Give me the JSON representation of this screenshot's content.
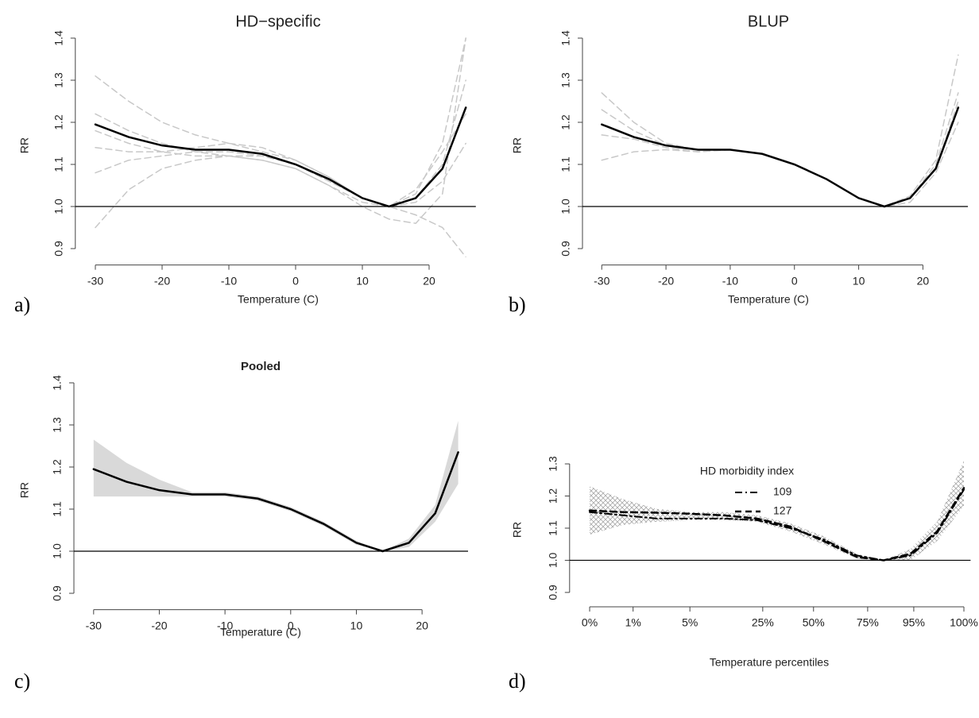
{
  "chart_data": [
    {
      "type": "line",
      "title": "HD−specific",
      "title_weight": "normal",
      "panel_label": "a)",
      "xlabel": "Temperature (C)",
      "ylabel": "RR",
      "x": [
        -30,
        -25,
        -20,
        -15,
        -10,
        -5,
        0,
        5,
        10,
        14,
        18,
        22,
        25.5
      ],
      "xlim": [
        -33,
        27
      ],
      "xticks": [
        -30,
        -20,
        -10,
        0,
        10,
        20
      ],
      "ylim": [
        0.88,
        1.41
      ],
      "yticks": [
        0.9,
        {
          "value": 1,
          "label": "1.0"
        },
        1.1,
        1.2,
        1.3,
        1.4
      ],
      "hline": 1,
      "series": [
        {
          "color": "#c8c8c8",
          "dash": "dashed",
          "width": 1.5,
          "values": [
            1.31,
            1.25,
            1.2,
            1.17,
            1.15,
            1.13,
            1.11,
            1.07,
            1.02,
            1.0,
            1.03,
            1.15,
            1.4
          ]
        },
        {
          "color": "#c8c8c8",
          "dash": "dashed",
          "width": 1.5,
          "values": [
            0.95,
            1.04,
            1.09,
            1.11,
            1.12,
            1.12,
            1.1,
            1.06,
            1.02,
            1.0,
            0.98,
            0.95,
            0.88
          ]
        },
        {
          "color": "#c8c8c8",
          "dash": "dashed",
          "width": 1.5,
          "values": [
            1.14,
            1.13,
            1.13,
            1.14,
            1.15,
            1.14,
            1.11,
            1.07,
            1.02,
            1.0,
            1.01,
            1.06,
            1.15
          ]
        },
        {
          "color": "#c8c8c8",
          "dash": "dashed",
          "width": 1.5,
          "values": [
            1.22,
            1.18,
            1.15,
            1.13,
            1.12,
            1.11,
            1.09,
            1.05,
            1.0,
            0.97,
            0.96,
            1.03,
            1.4
          ]
        },
        {
          "color": "#c8c8c8",
          "dash": "dashed",
          "width": 1.5,
          "values": [
            1.08,
            1.11,
            1.12,
            1.13,
            1.13,
            1.12,
            1.1,
            1.06,
            1.02,
            1.0,
            1.02,
            1.1,
            1.3
          ]
        },
        {
          "color": "#c8c8c8",
          "dash": "dashed",
          "width": 1.5,
          "values": [
            1.18,
            1.15,
            1.13,
            1.12,
            1.12,
            1.11,
            1.09,
            1.05,
            1.01,
            1.0,
            1.04,
            1.13,
            1.22
          ]
        },
        {
          "color": "#000000",
          "dash": "solid",
          "width": 2.5,
          "values": [
            1.195,
            1.165,
            1.145,
            1.135,
            1.135,
            1.125,
            1.1,
            1.065,
            1.02,
            1.0,
            1.02,
            1.09,
            1.235
          ]
        }
      ]
    },
    {
      "type": "line",
      "title": "BLUP",
      "title_weight": "normal",
      "panel_label": "b)",
      "xlabel": "Temperature (C)",
      "ylabel": "RR",
      "x": [
        -30,
        -25,
        -20,
        -15,
        -10,
        -5,
        0,
        5,
        10,
        14,
        18,
        22,
        25.5
      ],
      "xlim": [
        -33,
        27
      ],
      "xticks": [
        -30,
        -20,
        -10,
        0,
        10,
        20
      ],
      "ylim": [
        0.88,
        1.41
      ],
      "yticks": [
        0.9,
        {
          "value": 1,
          "label": "1.0"
        },
        1.1,
        1.2,
        1.3,
        1.4
      ],
      "hline": 1,
      "series": [
        {
          "color": "#c8c8c8",
          "dash": "dashed",
          "width": 1.5,
          "values": [
            1.27,
            1.2,
            1.15,
            1.135,
            1.135,
            1.125,
            1.1,
            1.065,
            1.02,
            1.0,
            1.02,
            1.1,
            1.27
          ]
        },
        {
          "color": "#c8c8c8",
          "dash": "dashed",
          "width": 1.5,
          "values": [
            1.11,
            1.13,
            1.135,
            1.13,
            1.135,
            1.125,
            1.1,
            1.065,
            1.02,
            1.0,
            1.01,
            1.08,
            1.2
          ]
        },
        {
          "color": "#c8c8c8",
          "dash": "dashed",
          "width": 1.5,
          "values": [
            1.17,
            1.16,
            1.14,
            1.13,
            1.135,
            1.125,
            1.1,
            1.065,
            1.02,
            1.0,
            1.025,
            1.11,
            1.36
          ]
        },
        {
          "color": "#c8c8c8",
          "dash": "dashed",
          "width": 1.5,
          "values": [
            1.23,
            1.18,
            1.145,
            1.135,
            1.135,
            1.125,
            1.1,
            1.065,
            1.02,
            1.0,
            1.02,
            1.09,
            1.25
          ]
        },
        {
          "color": "#000000",
          "dash": "solid",
          "width": 2.5,
          "values": [
            1.195,
            1.165,
            1.145,
            1.135,
            1.135,
            1.125,
            1.1,
            1.065,
            1.02,
            1.0,
            1.02,
            1.09,
            1.235
          ]
        }
      ]
    },
    {
      "type": "line",
      "title": "Pooled",
      "title_weight": "bold",
      "panel_label": "c)",
      "xlabel": "Temperature (C)",
      "ylabel": "RR",
      "x": [
        -30,
        -25,
        -20,
        -15,
        -10,
        -5,
        0,
        5,
        10,
        14,
        18,
        22,
        25.5
      ],
      "xlim": [
        -33,
        27
      ],
      "xticks": [
        -30,
        -20,
        -10,
        0,
        10,
        20
      ],
      "ylim": [
        0.88,
        1.41
      ],
      "yticks": [
        0.9,
        {
          "value": 1,
          "label": "1.0"
        },
        1.1,
        1.2,
        1.3,
        1.4
      ],
      "hline": 1,
      "band": {
        "color": "#d9d9d9",
        "fill": "solid",
        "lower": [
          1.13,
          1.13,
          1.13,
          1.13,
          1.13,
          1.12,
          1.095,
          1.06,
          1.015,
          1.0,
          1.01,
          1.07,
          1.16
        ],
        "upper": [
          1.265,
          1.21,
          1.17,
          1.14,
          1.14,
          1.13,
          1.105,
          1.07,
          1.025,
          1.0,
          1.03,
          1.11,
          1.31
        ]
      },
      "series": [
        {
          "color": "#000000",
          "dash": "solid",
          "width": 2.5,
          "values": [
            1.195,
            1.165,
            1.145,
            1.135,
            1.135,
            1.125,
            1.1,
            1.065,
            1.02,
            1.0,
            1.02,
            1.09,
            1.235
          ]
        }
      ]
    },
    {
      "type": "line",
      "panel_label": "d)",
      "xlabel": "Temperature percentiles",
      "ylabel": "RR",
      "x": [
        -30,
        -25,
        -20,
        -15,
        -10,
        -5,
        0,
        5,
        10,
        14,
        18,
        22,
        26
      ],
      "xlim": [
        -33,
        27
      ],
      "xticks": [
        {
          "value": -30,
          "label": "0%"
        },
        {
          "value": -23.5,
          "label": "1%"
        },
        {
          "value": -15,
          "label": "5%"
        },
        {
          "value": -4.1,
          "label": "25%"
        },
        {
          "value": 3.5,
          "label": "50%"
        },
        {
          "value": 11.6,
          "label": "75%"
        },
        {
          "value": 18.5,
          "label": "95%"
        },
        {
          "value": 26,
          "label": "100%"
        }
      ],
      "ylim": [
        0.88,
        1.31
      ],
      "yticks": [
        0.9,
        {
          "value": 1,
          "label": "1.0"
        },
        1.1,
        1.2,
        1.3
      ],
      "hline": 1,
      "band": {
        "color": "#a8a8a8",
        "fill": "hatch",
        "lower": [
          1.08,
          1.11,
          1.12,
          1.125,
          1.125,
          1.12,
          1.09,
          1.05,
          1.005,
          1.0,
          1.0,
          1.06,
          1.17
        ],
        "upper": [
          1.23,
          1.19,
          1.16,
          1.15,
          1.15,
          1.14,
          1.115,
          1.075,
          1.02,
          1.0,
          1.035,
          1.12,
          1.31
        ]
      },
      "legend_title": "HD morbidity index",
      "series": [
        {
          "name": "109",
          "color": "#000000",
          "dash": "dashdot",
          "width": 2,
          "values": [
            1.15,
            1.14,
            1.13,
            1.13,
            1.13,
            1.125,
            1.1,
            1.065,
            1.015,
            1.0,
            1.015,
            1.085,
            1.22
          ]
        },
        {
          "name": "127",
          "color": "#000000",
          "dash": "dashed",
          "width": 2.5,
          "values": [
            1.155,
            1.15,
            1.148,
            1.145,
            1.14,
            1.13,
            1.105,
            1.06,
            1.01,
            1.0,
            1.02,
            1.09,
            1.225
          ]
        }
      ]
    }
  ]
}
